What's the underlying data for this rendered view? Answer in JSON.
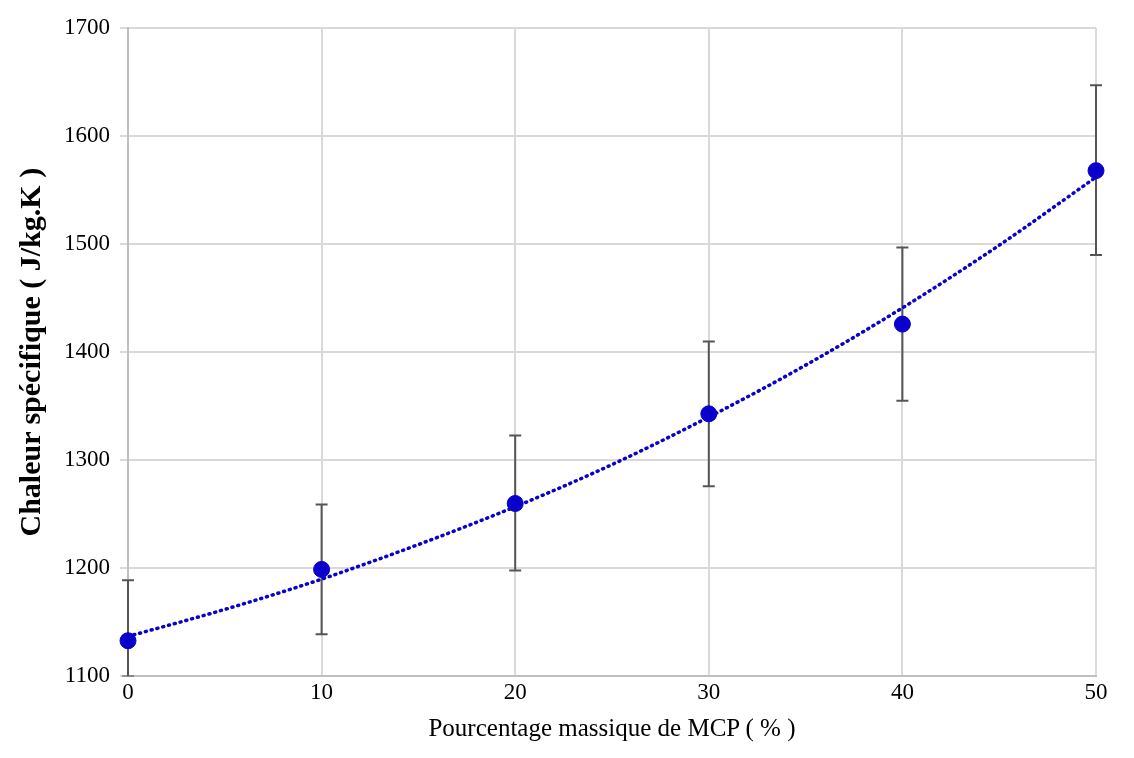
{
  "chart_data": {
    "type": "scatter",
    "xlabel": "Pourcentage massique de MCP ( % )",
    "ylabel": "Chaleur spécifique ( J/kg.K )",
    "x": [
      0,
      10,
      20,
      30,
      40,
      50
    ],
    "series": [
      {
        "type": "scatter",
        "color": "#0a00cc",
        "marker": "circle",
        "values": [
          1133,
          1199,
          1260,
          1343,
          1426,
          1568
        ],
        "errors": [
          [
            1100,
            1189
          ],
          [
            1139,
            1259
          ],
          [
            1198,
            1323
          ],
          [
            1276,
            1410
          ],
          [
            1355,
            1497
          ],
          [
            1490,
            1647
          ]
        ]
      },
      {
        "type": "line",
        "color": "#0a00cc",
        "marker": "none",
        "line_style": "dotted",
        "x": [
          0,
          5,
          10,
          15,
          20,
          25,
          30,
          35,
          40,
          45,
          50
        ],
        "values": [
          1137,
          1162,
          1190,
          1222,
          1257,
          1296,
          1340,
          1388,
          1441,
          1499,
          1562
        ]
      }
    ],
    "xlim": [
      0,
      50
    ],
    "xticks": [
      0,
      10,
      20,
      30,
      40,
      50
    ],
    "ylim": [
      1100,
      1700
    ],
    "yticks": [
      1100,
      1200,
      1300,
      1400,
      1500,
      1600,
      1700
    ],
    "grid": true
  }
}
